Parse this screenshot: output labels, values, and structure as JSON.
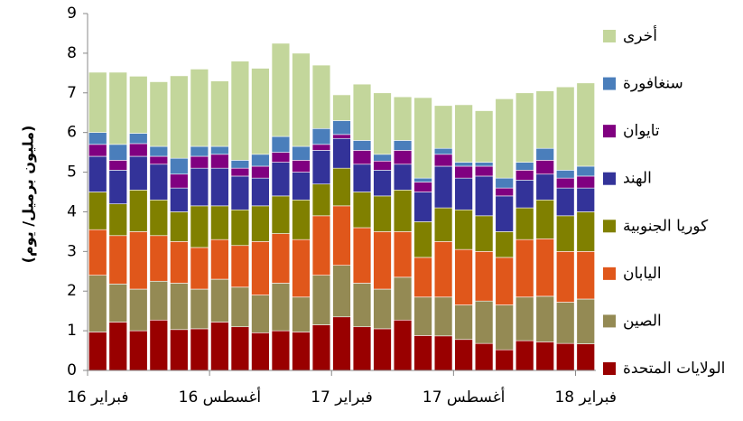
{
  "chart_data": {
    "type": "stacked_bar",
    "y_label": "(مليون برميل/ يوم)",
    "categories": [
      "فبراير 16",
      null,
      null,
      null,
      null,
      null,
      "أغسطس 16",
      null,
      null,
      null,
      null,
      null,
      "فبراير 17",
      null,
      null,
      null,
      null,
      null,
      "أغسطس 17",
      null,
      null,
      null,
      null,
      null,
      "فبراير 18"
    ],
    "ylim": [
      0,
      9
    ],
    "yticks": [
      0,
      1,
      2,
      3,
      4,
      5,
      6,
      7,
      8,
      9
    ],
    "grid": false,
    "legend": "right",
    "series": [
      {
        "name": "الولايات المتحدة",
        "color": "#990000",
        "values": [
          0.97,
          1.22,
          1.0,
          1.27,
          1.03,
          1.05,
          1.22,
          1.1,
          0.95,
          1.0,
          0.97,
          1.15,
          1.35,
          1.1,
          1.05,
          1.27,
          0.88,
          0.87,
          0.78,
          0.68,
          0.52,
          0.75,
          0.72,
          0.68,
          0.67
        ]
      },
      {
        "name": "الصين",
        "color": "#948a54",
        "values": [
          1.43,
          0.96,
          1.05,
          0.98,
          1.17,
          1.0,
          1.08,
          1.0,
          0.95,
          1.2,
          0.88,
          1.25,
          1.3,
          1.1,
          1.0,
          1.08,
          0.97,
          0.98,
          0.87,
          1.07,
          1.13,
          1.1,
          1.15,
          1.04,
          1.13
        ]
      },
      {
        "name": "اليابان",
        "color": "#e0571b",
        "values": [
          1.15,
          1.22,
          1.45,
          1.15,
          1.05,
          1.05,
          1.0,
          1.05,
          1.35,
          1.25,
          1.45,
          1.5,
          1.5,
          1.4,
          1.45,
          1.15,
          1.0,
          1.4,
          1.4,
          1.25,
          1.2,
          1.45,
          1.45,
          1.28,
          1.2
        ]
      },
      {
        "name": "كوريا الجنوبية",
        "color": "#808000",
        "values": [
          0.95,
          0.8,
          1.05,
          0.9,
          0.75,
          1.05,
          0.85,
          0.9,
          0.9,
          0.95,
          1.0,
          0.8,
          0.95,
          0.9,
          0.9,
          1.05,
          0.9,
          0.85,
          1.0,
          0.9,
          0.65,
          0.8,
          0.98,
          0.9,
          1.0
        ]
      },
      {
        "name": "الهند",
        "color": "#333399",
        "values": [
          0.9,
          0.85,
          0.85,
          0.9,
          0.6,
          0.95,
          0.95,
          0.85,
          0.7,
          0.85,
          0.7,
          0.85,
          0.75,
          0.7,
          0.65,
          0.65,
          0.75,
          1.05,
          0.8,
          1.0,
          0.9,
          0.7,
          0.65,
          0.7,
          0.6
        ]
      },
      {
        "name": "تايوان",
        "color": "#800080",
        "values": [
          0.3,
          0.25,
          0.32,
          0.2,
          0.35,
          0.3,
          0.35,
          0.2,
          0.3,
          0.25,
          0.3,
          0.15,
          0.1,
          0.35,
          0.23,
          0.35,
          0.25,
          0.3,
          0.3,
          0.25,
          0.2,
          0.25,
          0.35,
          0.25,
          0.3
        ]
      },
      {
        "name": "سنغافورة",
        "color": "#4a7ebb",
        "values": [
          0.3,
          0.4,
          0.26,
          0.25,
          0.4,
          0.25,
          0.2,
          0.2,
          0.3,
          0.4,
          0.35,
          0.4,
          0.35,
          0.25,
          0.17,
          0.25,
          0.1,
          0.15,
          0.1,
          0.1,
          0.25,
          0.2,
          0.3,
          0.2,
          0.25
        ]
      },
      {
        "name": "أخرى",
        "color": "#c3d69b",
        "values": [
          1.52,
          1.82,
          1.44,
          1.63,
          2.08,
          1.95,
          1.65,
          2.5,
          2.17,
          2.35,
          2.35,
          1.6,
          0.65,
          1.42,
          1.55,
          1.1,
          2.03,
          1.08,
          1.45,
          1.3,
          2.0,
          1.75,
          1.45,
          2.1,
          2.1
        ]
      }
    ]
  }
}
